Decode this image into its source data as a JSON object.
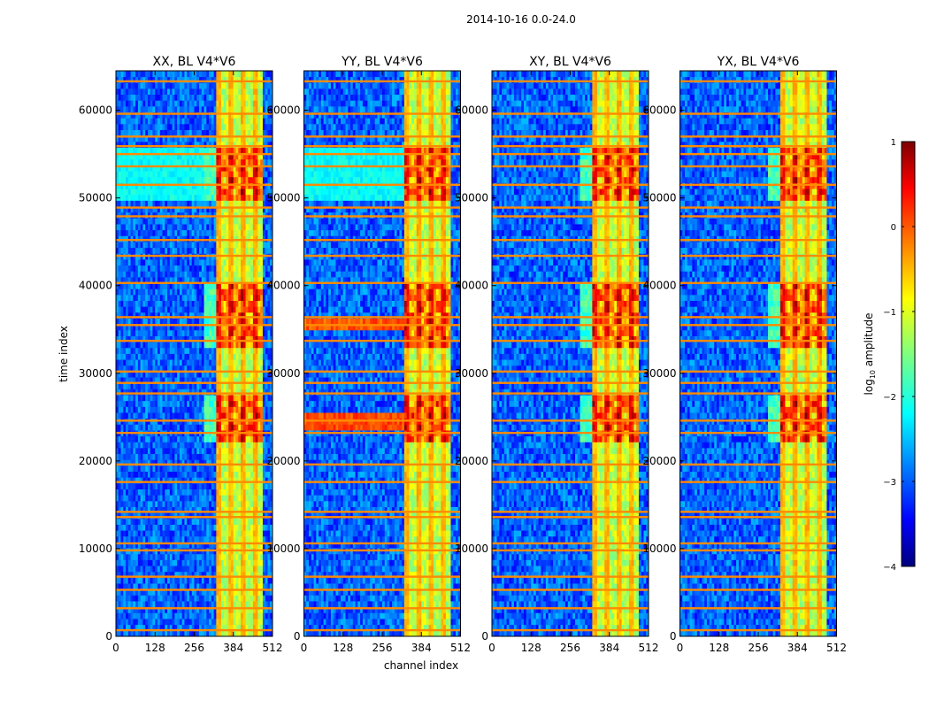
{
  "figure": {
    "suptitle": "2014-10-16 0.0-24.0",
    "xlabel": "channel index",
    "ylabel": "time index"
  },
  "colors": {
    "background": "#0a24e6",
    "axis": "#000000",
    "text": "#000000"
  },
  "chart_data": {
    "type": "heatmap",
    "xlim": [
      0,
      512
    ],
    "ylim": [
      0,
      64500
    ],
    "xticks": [
      0,
      128,
      256,
      384,
      512
    ],
    "yticks": [
      0,
      10000,
      20000,
      30000,
      40000,
      50000,
      60000
    ],
    "panels": [
      {
        "title": "XX, BL V4*V6",
        "show_ylabels": true
      },
      {
        "title": "YY, BL V4*V6",
        "show_ylabels": false
      },
      {
        "title": "XY, BL V4*V6",
        "show_ylabels": false
      },
      {
        "title": "YX, BL V4*V6",
        "show_ylabels": false
      }
    ],
    "colorbar": {
      "label": "log10 amplitude",
      "label_main": "log",
      "label_sub": "10",
      "label_rest": " amplitude",
      "vmin": -4,
      "vmax": 1,
      "ticks": [
        1,
        0,
        -1,
        -2,
        -3,
        -4
      ],
      "tick_labels": [
        "1",
        "0",
        "−1",
        "−2",
        "−3",
        "−4"
      ],
      "colormap": "jet"
    },
    "features": {
      "bright_channel_band": [
        325,
        480
      ],
      "bright_columns": [
        [
          330,
          345
        ],
        [
          368,
          382
        ],
        [
          410,
          424
        ],
        [
          450,
          465
        ]
      ],
      "hot_time_blocks": [
        [
          22000,
          27500
        ],
        [
          33000,
          40000
        ],
        [
          50000,
          55500
        ]
      ],
      "flag_rows": [
        700,
        3200,
        5300,
        6800,
        9800,
        10600,
        13600,
        14200,
        17600,
        19600,
        23200,
        24600,
        27700,
        28900,
        30200,
        33700,
        35500,
        36400,
        40300,
        43400,
        45200,
        47900,
        48900,
        51500,
        53600,
        55000,
        55900,
        57000,
        59600,
        63300
      ],
      "flag_value": -0.3
    }
  }
}
